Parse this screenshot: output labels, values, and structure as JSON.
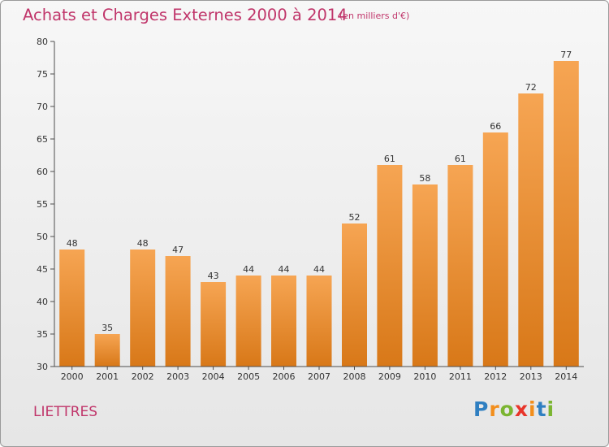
{
  "chart_data": {
    "type": "bar",
    "title": "Achats et Charges Externes 2000 à 2014",
    "subtitle": "(en milliers d'€)",
    "categories": [
      "2000",
      "2001",
      "2002",
      "2003",
      "2004",
      "2005",
      "2006",
      "2007",
      "2008",
      "2009",
      "2010",
      "2011",
      "2012",
      "2013",
      "2014"
    ],
    "values": [
      48,
      35,
      48,
      47,
      43,
      44,
      44,
      44,
      52,
      61,
      58,
      61,
      66,
      72,
      77
    ],
    "ylim": [
      30,
      80
    ],
    "yticks": [
      30,
      35,
      40,
      45,
      50,
      55,
      60,
      65,
      70,
      75,
      80
    ],
    "xlabel": "",
    "ylabel": "",
    "grid": false,
    "bar_color_top": "#f6a553",
    "bar_color_bottom": "#d87818",
    "axis_color": "#4d4d4d"
  },
  "footer": {
    "commune": "LIETTRES",
    "logo": [
      "P",
      "r",
      "o",
      "x",
      "i",
      "t",
      "i"
    ],
    "logo_colors": [
      "#2f7fc1",
      "#f28e1c",
      "#7bb531",
      "#e8352a",
      "#f28e1c",
      "#2f7fc1",
      "#7bb531"
    ]
  }
}
